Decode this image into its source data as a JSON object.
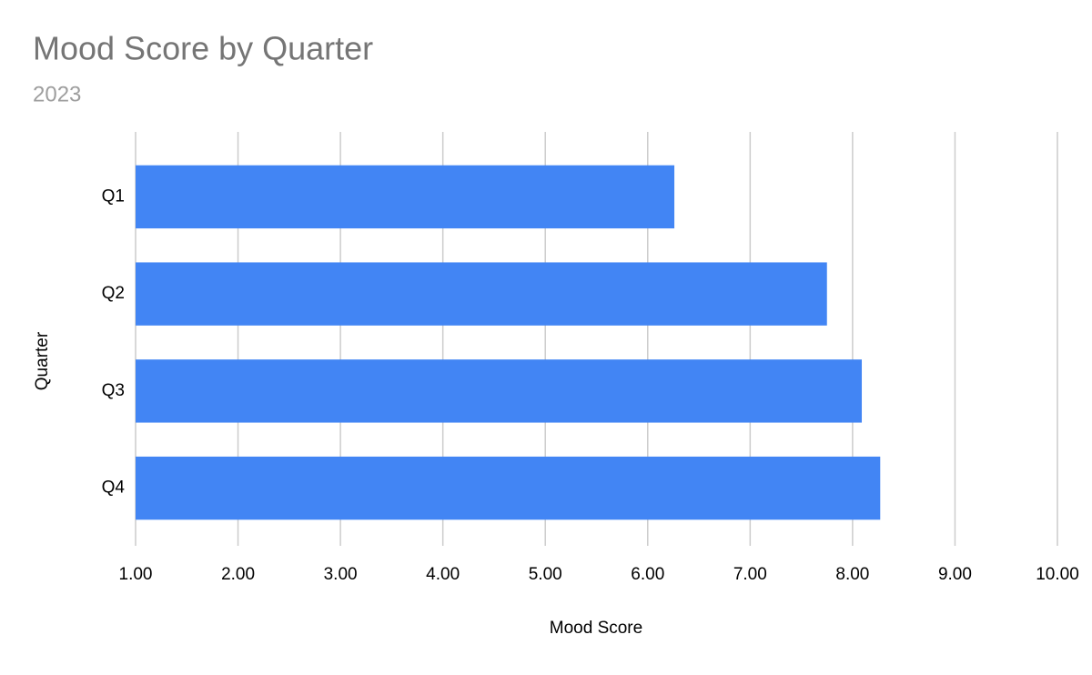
{
  "chart_data": {
    "type": "bar",
    "orientation": "horizontal",
    "title": "Mood Score by Quarter",
    "subtitle": "2023",
    "x_label": "Mood Score",
    "y_label": "Quarter",
    "categories": [
      "Q1",
      "Q2",
      "Q3",
      "Q4"
    ],
    "values": [
      6.26,
      7.75,
      8.09,
      8.27
    ],
    "color": "#4285f4",
    "xlim": [
      1,
      10
    ],
    "xticks": [
      {
        "value": 1,
        "label": "1.00"
      },
      {
        "value": 2,
        "label": "2.00"
      },
      {
        "value": 3,
        "label": "3.00"
      },
      {
        "value": 4,
        "label": "4.00"
      },
      {
        "value": 5,
        "label": "5.00"
      },
      {
        "value": 6,
        "label": "6.00"
      },
      {
        "value": 7,
        "label": "7.00"
      },
      {
        "value": 8,
        "label": "8.00"
      },
      {
        "value": 9,
        "label": "9.00"
      },
      {
        "value": 10,
        "label": "10.00"
      }
    ],
    "grid": true
  }
}
